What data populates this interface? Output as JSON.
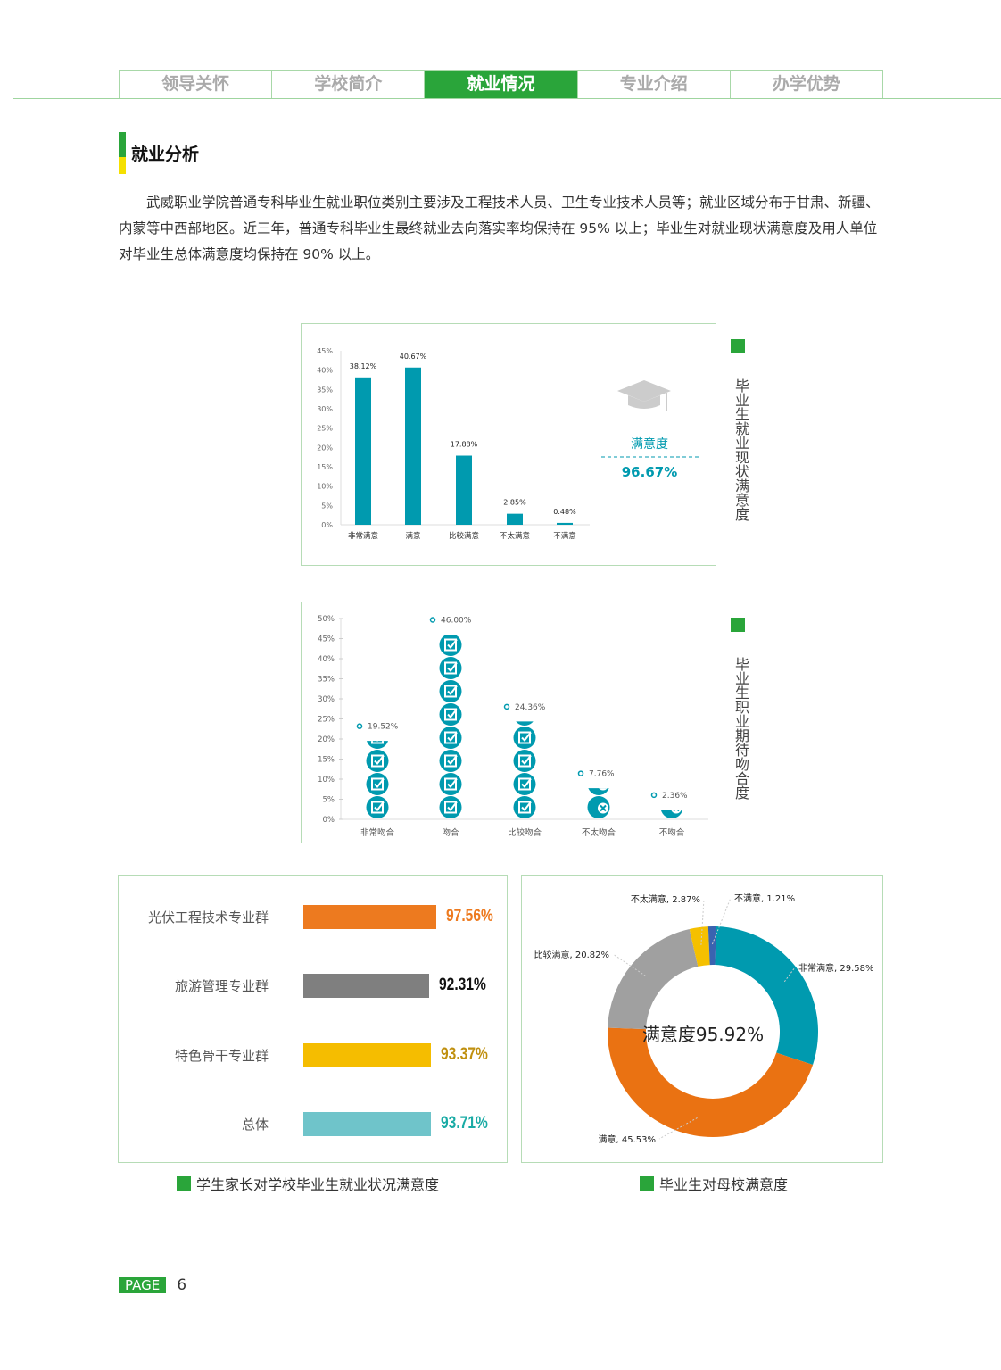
{
  "nav": {
    "tabs": [
      {
        "label": "领导关怀",
        "active": false
      },
      {
        "label": "学校简介",
        "active": false
      },
      {
        "label": "就业情况",
        "active": true
      },
      {
        "label": "专业介绍",
        "active": false
      },
      {
        "label": "办学优势",
        "active": false
      }
    ]
  },
  "section": {
    "title": "就业分析",
    "paragraph": "武威职业学院普通专科毕业生就业职位类别主要涉及工程技术人员、卫生专业技术人员等；就业区域分布于甘肃、新疆、内蒙等中西部地区。近三年，普通专科毕业生最终就业去向落实率均保持在 95% 以上；毕业生对就业现状满意度及用人单位对毕业生总体满意度均保持在 90% 以上。"
  },
  "colors": {
    "accent": "#2aa53a",
    "teal": "#009aaf"
  },
  "chart_data": [
    {
      "type": "bar",
      "title": "毕业生就业现状满意度",
      "categories": [
        "非常满意",
        "满意",
        "比较满意",
        "不太满意",
        "不满意"
      ],
      "values": [
        38.12,
        40.67,
        17.88,
        2.85,
        0.48
      ],
      "value_labels": [
        "38.12%",
        "40.67%",
        "17.88%",
        "2.85%",
        "0.48%"
      ],
      "yticks": [
        "0%",
        "5%",
        "10%",
        "15%",
        "20%",
        "25%",
        "30%",
        "35%",
        "40%",
        "45%"
      ],
      "ylim": [
        0,
        45
      ],
      "color": "#009aaf",
      "side_label": "满意度",
      "side_value": "96.67%",
      "icon": "graduation-cap-icon"
    },
    {
      "type": "bar",
      "title": "毕业生职业期待吻合度",
      "categories": [
        "非常吻合",
        "吻合",
        "比较吻合",
        "不太吻合",
        "不吻合"
      ],
      "values": [
        19.52,
        46.0,
        24.36,
        7.76,
        2.36
      ],
      "value_labels": [
        "19.52%",
        "46.00%",
        "24.36%",
        "7.76%",
        "2.36%"
      ],
      "yticks": [
        "0%",
        "5%",
        "10%",
        "15%",
        "20%",
        "25%",
        "30%",
        "35%",
        "40%",
        "45%",
        "50%"
      ],
      "ylim": [
        0,
        50
      ],
      "color": "#009aaf",
      "icons": [
        "checkbox-icon",
        "checkbox-icon",
        "checkbox-icon",
        "close-circle-icon",
        "close-circle-icon"
      ]
    },
    {
      "type": "bar",
      "orientation": "horizontal",
      "title": "学生家长对学校毕业生就业状况满意度",
      "categories": [
        "光伏工程技术专业群",
        "旅游管理专业群",
        "特色骨干专业群",
        "总体"
      ],
      "values": [
        97.56,
        92.31,
        93.37,
        93.71
      ],
      "value_labels": [
        "97.56%",
        "92.31%",
        "93.37%",
        "93.71%"
      ],
      "bar_colors": [
        "#ed7a1f",
        "#7f7f7f",
        "#f5bd00",
        "#6fc4ca"
      ],
      "label_colors": [
        "#ed7a1f",
        "#111111",
        "#c09010",
        "#1aaba5"
      ]
    },
    {
      "type": "pie",
      "donut": true,
      "title": "毕业生对母校满意度",
      "center_label": "满意度95.92%",
      "slices": [
        {
          "name": "非常满意",
          "value": 29.58,
          "label": "非常满意, 29.58%",
          "color": "#009aaf"
        },
        {
          "name": "满意",
          "value": 45.53,
          "label": "满意, 45.53%",
          "color": "#ea7212"
        },
        {
          "name": "比较满意",
          "value": 20.82,
          "label": "比较满意, 20.82%",
          "color": "#a0a0a0"
        },
        {
          "name": "不太满意",
          "value": 2.87,
          "label": "不太满意, 2.87%",
          "color": "#f5c000"
        },
        {
          "name": "不满意",
          "value": 1.21,
          "label": "不满意, 1.21%",
          "color": "#3a63b0"
        }
      ]
    }
  ],
  "footer": {
    "page_label": "PAGE",
    "page_number": "6"
  }
}
